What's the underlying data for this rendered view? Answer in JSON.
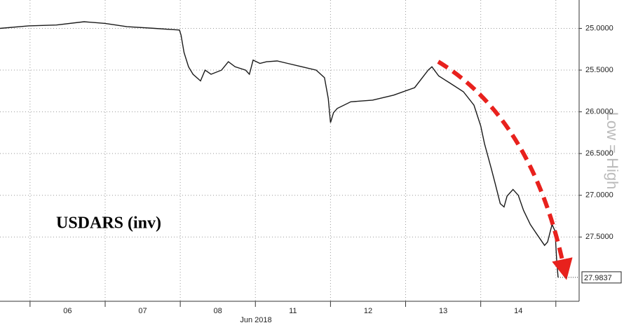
{
  "chart_data": {
    "type": "line",
    "title": "USDARS (inv)",
    "annotation": "Low = High",
    "x_label": "Jun 2018",
    "inverted_y": true,
    "grid": true,
    "xlim": [
      -0.9,
      6.81
    ],
    "xticks": [
      {
        "value": 0,
        "label": "06"
      },
      {
        "value": 1,
        "label": "07"
      },
      {
        "value": 2,
        "label": "08"
      },
      {
        "value": 3,
        "label": "11"
      },
      {
        "value": 4,
        "label": "12"
      },
      {
        "value": 5,
        "label": "13"
      },
      {
        "value": 6,
        "label": "14"
      }
    ],
    "ylim": [
      24.66,
      28.27
    ],
    "yticks": [
      {
        "value": 25,
        "label": "25.0000"
      },
      {
        "value": 25.5,
        "label": "25.5000"
      },
      {
        "value": 26,
        "label": "26.0000"
      },
      {
        "value": 26.5,
        "label": "26.5000"
      },
      {
        "value": 27,
        "label": "27.0000"
      },
      {
        "value": 27.5,
        "label": "27.5000"
      }
    ],
    "series": [
      {
        "name": "USDARS",
        "color": "#1a1a1a",
        "x": [
          -0.9,
          -0.52,
          -0.15,
          0.22,
          0.5,
          0.79,
          1.16,
          1.49,
          1.51,
          1.55,
          1.61,
          1.67,
          1.77,
          1.83,
          1.91,
          2.05,
          2.14,
          2.23,
          2.37,
          2.42,
          2.47,
          2.56,
          2.65,
          2.79,
          2.93,
          3.12,
          3.31,
          3.42,
          3.47,
          3.5,
          3.54,
          3.59,
          3.77,
          4.06,
          4.34,
          4.62,
          4.8,
          4.85,
          4.94,
          5.08,
          5.27,
          5.41,
          5.5,
          5.55,
          5.64,
          5.69,
          5.76,
          5.81,
          5.85,
          5.93,
          6.0,
          6.07,
          6.16,
          6.25,
          6.35,
          6.39,
          6.45,
          6.49,
          6.51,
          6.53
        ],
        "values": [
          25.0,
          24.97,
          24.96,
          24.92,
          24.94,
          24.98,
          25.0,
          25.02,
          25.08,
          25.29,
          25.46,
          25.55,
          25.63,
          25.5,
          25.55,
          25.5,
          25.4,
          25.46,
          25.5,
          25.55,
          25.38,
          25.42,
          25.4,
          25.39,
          25.42,
          25.46,
          25.5,
          25.59,
          25.84,
          26.13,
          26.01,
          25.96,
          25.88,
          25.86,
          25.8,
          25.71,
          25.5,
          25.46,
          25.57,
          25.65,
          25.76,
          25.92,
          26.17,
          26.38,
          26.68,
          26.85,
          27.1,
          27.14,
          27.01,
          26.93,
          27.0,
          27.18,
          27.35,
          27.47,
          27.6,
          27.56,
          27.35,
          27.43,
          27.77,
          27.9837
        ]
      }
    ]
  }
}
